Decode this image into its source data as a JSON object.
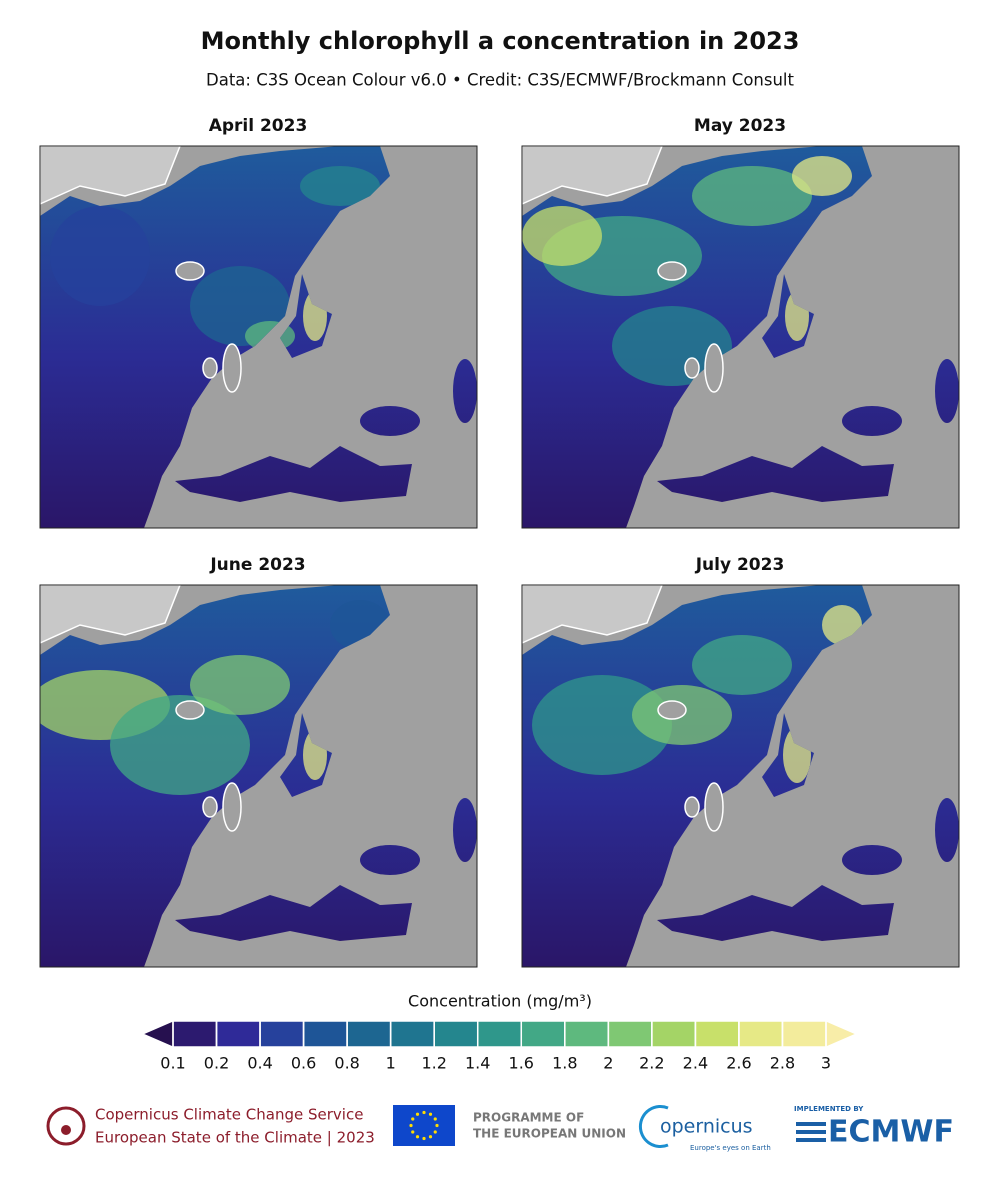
{
  "header": {
    "title": "Monthly chlorophyll a concentration in 2023",
    "subtitle": "Data: C3S Ocean Colour v6.0 • Credit: C3S/ECMWF/Brockmann Consult"
  },
  "panels": [
    {
      "title": "April 2023"
    },
    {
      "title": "May 2023"
    },
    {
      "title": "June 2023"
    },
    {
      "title": "July 2023"
    }
  ],
  "colorbar": {
    "label": "Concentration (mg/m³)",
    "ticks": [
      0.1,
      0.2,
      0.4,
      0.6,
      0.8,
      1,
      1.2,
      1.4,
      1.6,
      1.8,
      2,
      2.2,
      2.4,
      2.6,
      2.8,
      3
    ],
    "colors": [
      "#2c1a6f",
      "#2f2a98",
      "#26419c",
      "#1e5597",
      "#1d6691",
      "#1f7590",
      "#24868e",
      "#2f978b",
      "#42a886",
      "#5eb97e",
      "#7fc873",
      "#a4d466",
      "#c8e06a",
      "#e6e986",
      "#f3ec9c"
    ],
    "under_color": "#26104f",
    "over_color": "#f8eda8"
  },
  "footer": {
    "c3s_line1": "Copernicus Climate Change Service",
    "c3s_line2": "European State of the Climate | 2023",
    "eu_line1": "PROGRAMME OF",
    "eu_line2": "THE EUROPEAN UNION",
    "copernicus": "opernicus",
    "copernicus_tagline": "Europe's eyes on Earth",
    "ecmwf_small": "IMPLEMENTED BY",
    "ecmwf": "ECMWF"
  }
}
